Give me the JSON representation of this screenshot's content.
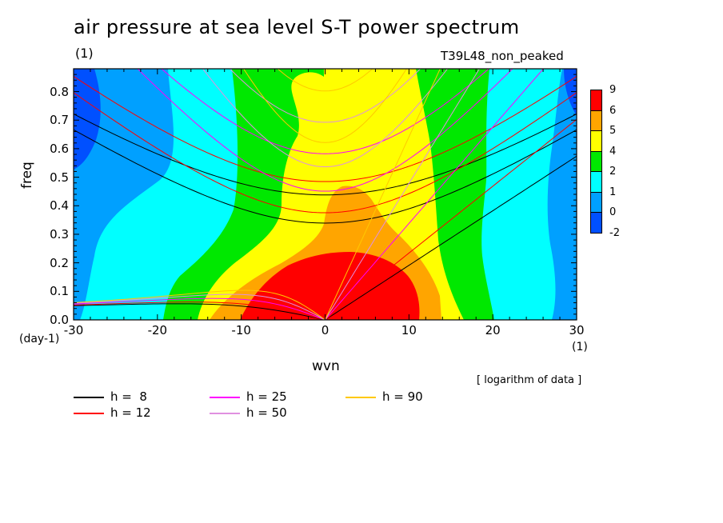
{
  "header": {
    "title": "air pressure at sea level S-T power spectrum",
    "unit": "(1)",
    "run_name": "T39L48_non_peaked"
  },
  "note": "[ logarithm of data ]",
  "chart_data": {
    "type": "heatmap",
    "xlabel": "wvn",
    "ylabel": "freq",
    "x_unit": "(1)",
    "y_unit": "(day-1)",
    "xlim": [
      -30,
      30
    ],
    "ylim": [
      0,
      0.88
    ],
    "x_ticks": [
      -30,
      -20,
      -10,
      0,
      10,
      20,
      30
    ],
    "x_tick_labels": [
      "-30",
      "-20",
      "-10",
      "0",
      "10",
      "20",
      "30"
    ],
    "y_ticks": [
      0,
      0.1,
      0.2,
      0.3,
      0.4,
      0.5,
      0.6,
      0.7,
      0.8
    ],
    "y_tick_labels": [
      "0.0",
      "0.1",
      "0.2",
      "0.3",
      "0.4",
      "0.5",
      "0.6",
      "0.7",
      "0.8"
    ],
    "contour_levels": [
      -2,
      0,
      1,
      2,
      4,
      5,
      6,
      9
    ],
    "colorbar_labels": [
      "9",
      "6",
      "5",
      "4",
      "2",
      "1",
      "0",
      "-2"
    ],
    "colorbar_colors": [
      "#ff0000",
      "#ffa500",
      "#ffff00",
      "#00e800",
      "#00ffff",
      "#00a0ff",
      "#0050ff"
    ],
    "fill_colors": {
      "level_0_1": "#00a0ff",
      "level_1_2": "#00ffff",
      "level_2_4": "#00e800",
      "level_4_5": "#ffff00",
      "level_5_6": "#ffa500",
      "level_6_9": "#ff0000",
      "below_0": "#0050ff"
    },
    "dispersion_curves": [
      {
        "label": "h =  8",
        "h": 8,
        "color": "#000000"
      },
      {
        "label": "h = 12",
        "h": 12,
        "color": "#ff0000"
      },
      {
        "label": "h = 25",
        "h": 25,
        "color": "#ff00ff"
      },
      {
        "label": "h = 50",
        "h": 50,
        "color": "#e090e0"
      },
      {
        "label": "h = 90",
        "h": 90,
        "color": "#ffc800"
      }
    ],
    "grid": false,
    "legend_position": "bottom-left"
  }
}
